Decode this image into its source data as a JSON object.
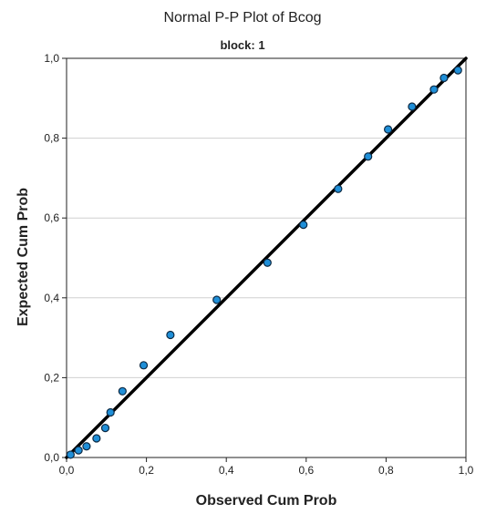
{
  "chart_data": {
    "type": "scatter",
    "title": "Normal P-P Plot of Bcog",
    "subtitle": "block: 1",
    "xlabel": "Observed Cum Prob",
    "ylabel": "Expected Cum Prob",
    "xlim": [
      0,
      1
    ],
    "ylim": [
      0,
      1
    ],
    "x_ticks": [
      "0,0",
      "0,2",
      "0,4",
      "0,6",
      "0,8",
      "1,0"
    ],
    "y_ticks": [
      "0,0",
      "0,2",
      "0,4",
      "0,6",
      "0,8",
      "1,0"
    ],
    "grid": "horizontal",
    "reference_line": {
      "from": [
        0,
        0
      ],
      "to": [
        1,
        1
      ]
    },
    "x": [
      0.01,
      0.03,
      0.05,
      0.075,
      0.097,
      0.11,
      0.14,
      0.193,
      0.26,
      0.376,
      0.503,
      0.593,
      0.68,
      0.755,
      0.805,
      0.865,
      0.92,
      0.945,
      0.98
    ],
    "y": [
      0.007,
      0.018,
      0.028,
      0.048,
      0.074,
      0.113,
      0.166,
      0.231,
      0.307,
      0.395,
      0.488,
      0.583,
      0.673,
      0.754,
      0.822,
      0.879,
      0.922,
      0.951,
      0.97
    ],
    "marker_color": "#1f8fd8",
    "marker_edge": "#0d2a44",
    "line_color": "#000000",
    "grid_color": "#d0d0d0"
  }
}
